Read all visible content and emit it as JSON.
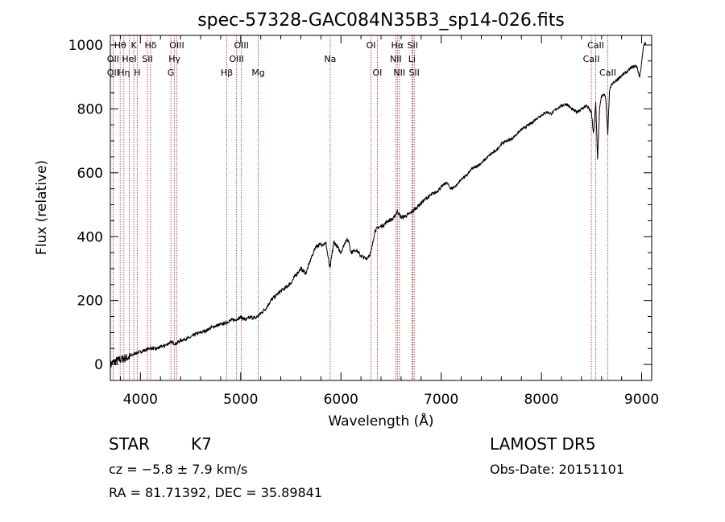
{
  "chart_data": {
    "type": "line",
    "title": "spec-57328-GAC084N35B3_sp14-026.fits",
    "xlabel": "Wavelength (Å)",
    "ylabel": "Flux (relative)",
    "xlim": [
      3700,
      9100
    ],
    "ylim": [
      -50,
      1030
    ],
    "xticks": [
      4000,
      5000,
      6000,
      7000,
      8000,
      9000
    ],
    "yticks": [
      0,
      200,
      400,
      600,
      800,
      1000
    ],
    "grid": false,
    "series": [
      {
        "x": [
          3700,
          3750,
          3800,
          3850,
          3900,
          3950,
          4000,
          4050,
          4100,
          4150,
          4200,
          4250,
          4300,
          4350,
          4400,
          4450,
          4500,
          4550,
          4600,
          4650,
          4700,
          4750,
          4800,
          4850,
          4900,
          4950,
          5000,
          5050,
          5100,
          5150,
          5200,
          5250,
          5300,
          5350,
          5400,
          5450,
          5500,
          5550,
          5600,
          5650,
          5700,
          5750,
          5800,
          5850,
          5890,
          5930,
          6000,
          6050,
          6080,
          6100,
          6150,
          6200,
          6250,
          6300,
          6340,
          6380,
          6420,
          6470,
          6520,
          6563,
          6600,
          6650,
          6700,
          6750,
          6800,
          6850,
          6900,
          6950,
          7000,
          7050,
          7100,
          7150,
          7200,
          7250,
          7300,
          7350,
          7400,
          7450,
          7500,
          7550,
          7600,
          7650,
          7700,
          7750,
          7800,
          7850,
          7900,
          7950,
          8000,
          8050,
          8100,
          8150,
          8200,
          8250,
          8300,
          8350,
          8400,
          8450,
          8498,
          8520,
          8542,
          8560,
          8580,
          8600,
          8620,
          8640,
          8662,
          8680,
          8700,
          8750,
          8800,
          8850,
          8900,
          8950,
          8980,
          9000,
          9020,
          9040
        ],
        "y": [
          0,
          10,
          15,
          20,
          25,
          35,
          40,
          45,
          52,
          48,
          55,
          60,
          70,
          65,
          75,
          80,
          85,
          95,
          100,
          105,
          115,
          120,
          125,
          130,
          138,
          140,
          148,
          140,
          148,
          145,
          160,
          175,
          200,
          215,
          230,
          240,
          255,
          280,
          300,
          285,
          330,
          370,
          375,
          380,
          300,
          385,
          350,
          390,
          385,
          350,
          360,
          340,
          330,
          350,
          420,
          430,
          435,
          450,
          455,
          480,
          460,
          465,
          475,
          490,
          505,
          520,
          530,
          540,
          555,
          570,
          550,
          560,
          580,
          590,
          610,
          620,
          630,
          645,
          660,
          670,
          690,
          700,
          705,
          720,
          735,
          745,
          755,
          770,
          780,
          790,
          785,
          800,
          810,
          815,
          800,
          790,
          800,
          810,
          790,
          720,
          820,
          640,
          800,
          840,
          845,
          840,
          720,
          860,
          875,
          890,
          905,
          915,
          930,
          935,
          900,
          945,
          1000,
          1005
        ]
      }
    ],
    "line_markers": [
      {
        "name": "Hθ",
        "x": 3798,
        "row": 0
      },
      {
        "name": "K",
        "x": 3934,
        "row": 0
      },
      {
        "name": "Hδ",
        "x": 4102,
        "row": 0
      },
      {
        "name": "OIII",
        "x": 4363,
        "row": 0
      },
      {
        "name": "OIII",
        "x": 5007,
        "row": 0
      },
      {
        "name": "OI",
        "x": 6300,
        "row": 0
      },
      {
        "name": "Hα",
        "x": 6563,
        "row": 0
      },
      {
        "name": "SII",
        "x": 6716,
        "row": 0
      },
      {
        "name": "CaII",
        "x": 8542,
        "row": 0
      },
      {
        "name": "OII",
        "x": 3727,
        "row": 1
      },
      {
        "name": "HeI",
        "x": 3889,
        "row": 1
      },
      {
        "name": "SII",
        "x": 4070,
        "row": 1
      },
      {
        "name": "Hγ",
        "x": 4340,
        "row": 1
      },
      {
        "name": "OIII",
        "x": 4959,
        "row": 1
      },
      {
        "name": "Na",
        "x": 5893,
        "row": 1
      },
      {
        "name": "NII",
        "x": 6548,
        "row": 1
      },
      {
        "name": "Li",
        "x": 6708,
        "row": 1
      },
      {
        "name": "CaII",
        "x": 8498,
        "row": 1
      },
      {
        "name": "OII",
        "x": 3727,
        "row": 2
      },
      {
        "name": "Hη",
        "x": 3835,
        "row": 2
      },
      {
        "name": "H",
        "x": 3968,
        "row": 2
      },
      {
        "name": "G",
        "x": 4304,
        "row": 2
      },
      {
        "name": "Hβ",
        "x": 4861,
        "row": 2
      },
      {
        "name": "Mg",
        "x": 5175,
        "row": 2
      },
      {
        "name": "OI",
        "x": 6363,
        "row": 2
      },
      {
        "name": "NII",
        "x": 6583,
        "row": 2
      },
      {
        "name": "SII",
        "x": 6731,
        "row": 2
      },
      {
        "name": "CaII",
        "x": 8662,
        "row": 2
      }
    ]
  },
  "info": {
    "object_class": "STAR",
    "subclass": "K7",
    "survey": "LAMOST DR5",
    "cz": "cz = −5.8 ± 7.9 km/s",
    "obs_date": "Obs-Date: 20151101",
    "coords": "RA =  81.71392, DEC =  35.89841"
  },
  "colors": {
    "axis": "#000000",
    "spectrum": "#000000",
    "marker_line": "#b22222"
  }
}
